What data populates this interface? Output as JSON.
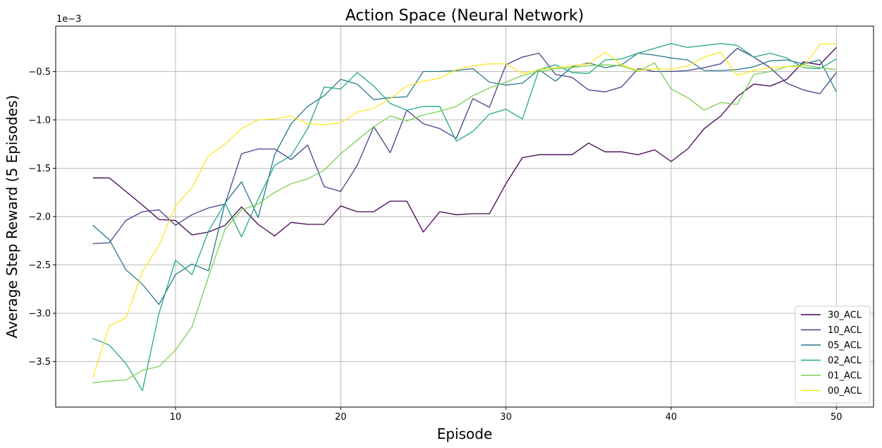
{
  "chart_data": {
    "type": "line",
    "title": "Action Space (Neural Network)",
    "xlabel": "Episode",
    "ylabel": "Average Step Reward (5 Episodes)",
    "y_scale_label": "1e−3",
    "xlim": [
      2.75,
      52.25
    ],
    "ylim": [
      -3.97,
      -0.03
    ],
    "x_ticks": [
      10,
      20,
      30,
      40,
      50
    ],
    "x_tick_labels": [
      "10",
      "20",
      "30",
      "40",
      "50"
    ],
    "y_ticks": [
      -3.5,
      -3.0,
      -2.5,
      -2.0,
      -1.5,
      -1.0,
      -0.5
    ],
    "y_tick_labels": [
      "−3.5",
      "−3.0",
      "−2.5",
      "−2.0",
      "−1.5",
      "−1.0",
      "−0.5"
    ],
    "grid": true,
    "legend_position": "lower-right",
    "x": [
      5,
      6,
      7,
      8,
      9,
      10,
      11,
      12,
      13,
      14,
      15,
      16,
      17,
      18,
      19,
      20,
      21,
      22,
      23,
      24,
      25,
      26,
      27,
      28,
      29,
      30,
      31,
      32,
      33,
      34,
      35,
      36,
      37,
      38,
      39,
      40,
      41,
      42,
      43,
      44,
      45,
      46,
      47,
      48,
      49,
      50
    ],
    "series": [
      {
        "name": "30_ACL",
        "color": "#440154",
        "values": [
          -1.6,
          -1.6,
          -1.74,
          -1.88,
          -2.03,
          -2.04,
          -2.19,
          -2.16,
          -2.09,
          -1.9,
          -2.08,
          -2.2,
          -2.06,
          -2.08,
          -2.08,
          -1.89,
          -1.95,
          -1.95,
          -1.84,
          -1.84,
          -2.16,
          -1.95,
          -1.98,
          -1.97,
          -1.97,
          -1.66,
          -1.39,
          -1.36,
          -1.36,
          -1.36,
          -1.24,
          -1.33,
          -1.33,
          -1.36,
          -1.31,
          -1.43,
          -1.3,
          -1.09,
          -0.96,
          -0.76,
          -0.63,
          -0.65,
          -0.58,
          -0.4,
          -0.43,
          -0.25
        ]
      },
      {
        "name": "10_ACL",
        "color": "#414487",
        "values": [
          -2.28,
          -2.27,
          -2.04,
          -1.95,
          -1.93,
          -2.09,
          -1.98,
          -1.91,
          -1.87,
          -1.35,
          -1.3,
          -1.3,
          -1.41,
          -1.26,
          -1.69,
          -1.74,
          -1.47,
          -1.07,
          -1.34,
          -0.9,
          -1.04,
          -1.09,
          -1.19,
          -0.78,
          -0.87,
          -0.43,
          -0.35,
          -0.31,
          -0.53,
          -0.56,
          -0.69,
          -0.71,
          -0.66,
          -0.47,
          -0.5,
          -0.5,
          -0.49,
          -0.46,
          -0.42,
          -0.26,
          -0.35,
          -0.46,
          -0.62,
          -0.69,
          -0.73,
          -0.51
        ]
      },
      {
        "name": "05_ACL",
        "color": "#2a788e",
        "values": [
          -2.09,
          -2.24,
          -2.55,
          -2.7,
          -2.91,
          -2.6,
          -2.49,
          -2.56,
          -1.86,
          -1.64,
          -2.01,
          -1.36,
          -1.04,
          -0.86,
          -0.75,
          -0.58,
          -0.63,
          -0.79,
          -0.77,
          -0.76,
          -0.5,
          -0.5,
          -0.49,
          -0.47,
          -0.61,
          -0.64,
          -0.62,
          -0.48,
          -0.6,
          -0.45,
          -0.41,
          -0.46,
          -0.43,
          -0.31,
          -0.33,
          -0.36,
          -0.38,
          -0.49,
          -0.49,
          -0.48,
          -0.45,
          -0.39,
          -0.38,
          -0.42,
          -0.38,
          -0.71
        ]
      },
      {
        "name": "02_ACL",
        "color": "#22a884",
        "values": [
          -3.26,
          -3.33,
          -3.52,
          -3.8,
          -3.0,
          -2.45,
          -2.6,
          -2.15,
          -1.86,
          -2.21,
          -1.82,
          -1.47,
          -1.37,
          -1.09,
          -0.66,
          -0.68,
          -0.51,
          -0.65,
          -0.83,
          -0.9,
          -0.86,
          -0.86,
          -1.22,
          -1.12,
          -0.94,
          -0.89,
          -0.99,
          -0.48,
          -0.43,
          -0.51,
          -0.52,
          -0.38,
          -0.37,
          -0.31,
          -0.26,
          -0.21,
          -0.25,
          -0.23,
          -0.21,
          -0.23,
          -0.35,
          -0.31,
          -0.36,
          -0.46,
          -0.47,
          -0.37
        ]
      },
      {
        "name": "01_ACL",
        "color": "#7ad151",
        "values": [
          -3.72,
          -3.7,
          -3.69,
          -3.59,
          -3.55,
          -3.38,
          -3.14,
          -2.62,
          -2.13,
          -1.93,
          -1.87,
          -1.75,
          -1.66,
          -1.61,
          -1.52,
          -1.35,
          -1.21,
          -1.07,
          -0.96,
          -1.01,
          -0.95,
          -0.91,
          -0.86,
          -0.75,
          -0.67,
          -0.61,
          -0.54,
          -0.5,
          -0.47,
          -0.46,
          -0.44,
          -0.43,
          -0.44,
          -0.5,
          -0.41,
          -0.68,
          -0.77,
          -0.9,
          -0.82,
          -0.84,
          -0.53,
          -0.5,
          -0.45,
          -0.43,
          -0.46,
          -0.48
        ]
      },
      {
        "name": "00_ACL",
        "color": "#fde725",
        "values": [
          -3.66,
          -3.13,
          -3.05,
          -2.57,
          -2.3,
          -1.89,
          -1.7,
          -1.37,
          -1.25,
          -1.09,
          -1.0,
          -0.99,
          -0.96,
          -1.04,
          -1.05,
          -1.03,
          -0.92,
          -0.88,
          -0.78,
          -0.65,
          -0.6,
          -0.57,
          -0.48,
          -0.44,
          -0.42,
          -0.42,
          -0.52,
          -0.48,
          -0.46,
          -0.44,
          -0.42,
          -0.3,
          -0.43,
          -0.49,
          -0.47,
          -0.48,
          -0.44,
          -0.35,
          -0.3,
          -0.54,
          -0.49,
          -0.46,
          -0.45,
          -0.45,
          -0.22,
          -0.21
        ]
      }
    ]
  }
}
